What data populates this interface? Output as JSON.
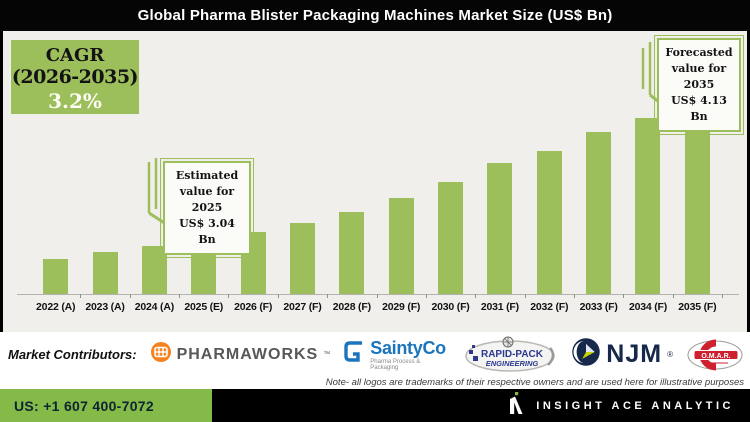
{
  "title": "Global Pharma Blister Packaging Machines Market Size (US$ Bn)",
  "cagr_box": {
    "line1": "CAGR",
    "line2": "(2026-2035)",
    "line3": "3.2%"
  },
  "callouts": {
    "estimated": {
      "line1": "Estimated",
      "line2": "value for 2025",
      "line3": "US$ 3.04 Bn"
    },
    "forecasted": {
      "line1": "Forecasted",
      "line2": "value for 2035",
      "line3": "US$ 4.13 Bn"
    }
  },
  "chart_data": {
    "type": "bar",
    "title": "Global Pharma Blister Packaging Machines Market Size (US$ Bn)",
    "categories": [
      "2022 (A)",
      "2023 (A)",
      "2024 (A)",
      "2025 (E)",
      "2026 (F)",
      "2027 (F)",
      "2028 (F)",
      "2029 (F)",
      "2030 (F)",
      "2031 (F)",
      "2032 (F)",
      "2033 (F)",
      "2034 (F)",
      "2035 (F)"
    ],
    "values": [
      2.9,
      2.95,
      3.0,
      3.04,
      3.1,
      3.17,
      3.25,
      3.35,
      3.47,
      3.61,
      3.7,
      3.84,
      3.95,
      4.13
    ],
    "ylabel": "US$ Bn",
    "ylim": [
      2.64,
      4.2
    ],
    "bar_color": "#9cbe5b",
    "grid": false,
    "legend": false,
    "annotations": [
      {
        "target": "2025 (E)",
        "text": "Estimated value for 2025 US$ 3.04 Bn"
      },
      {
        "target": "2035 (F)",
        "text": "Forecasted value for 2035 US$ 4.13 Bn"
      },
      {
        "target": "2026-2035",
        "text": "CAGR (2026-2035) 3.2%"
      }
    ]
  },
  "contributors": {
    "label": "Market Contributors:",
    "note": "Note- all logos are trademarks of their respective owners and are used here for illustrative purposes",
    "logos": {
      "pharmaworks": {
        "text": "PHARMAWORKS",
        "tm": "™"
      },
      "saintyco": {
        "text": "SaintyCo",
        "subtext": "Pharma Process & Packaging"
      },
      "rapidpack": {
        "line1": "RAPID-PACK",
        "line2": "ENGINEERING"
      },
      "njm": {
        "text": "NJM",
        "reg": "®"
      },
      "omar": {
        "text": "O.M.A.R."
      }
    }
  },
  "footer": {
    "phone": "US: +1 607 400-7072",
    "brand": "INSIGHT ACE ANALYTIC"
  },
  "colors": {
    "bar_green": "#9cbe5b",
    "footer_green": "#84ba47",
    "chart_bg": "#f0efec",
    "title_bg": "#050505"
  }
}
